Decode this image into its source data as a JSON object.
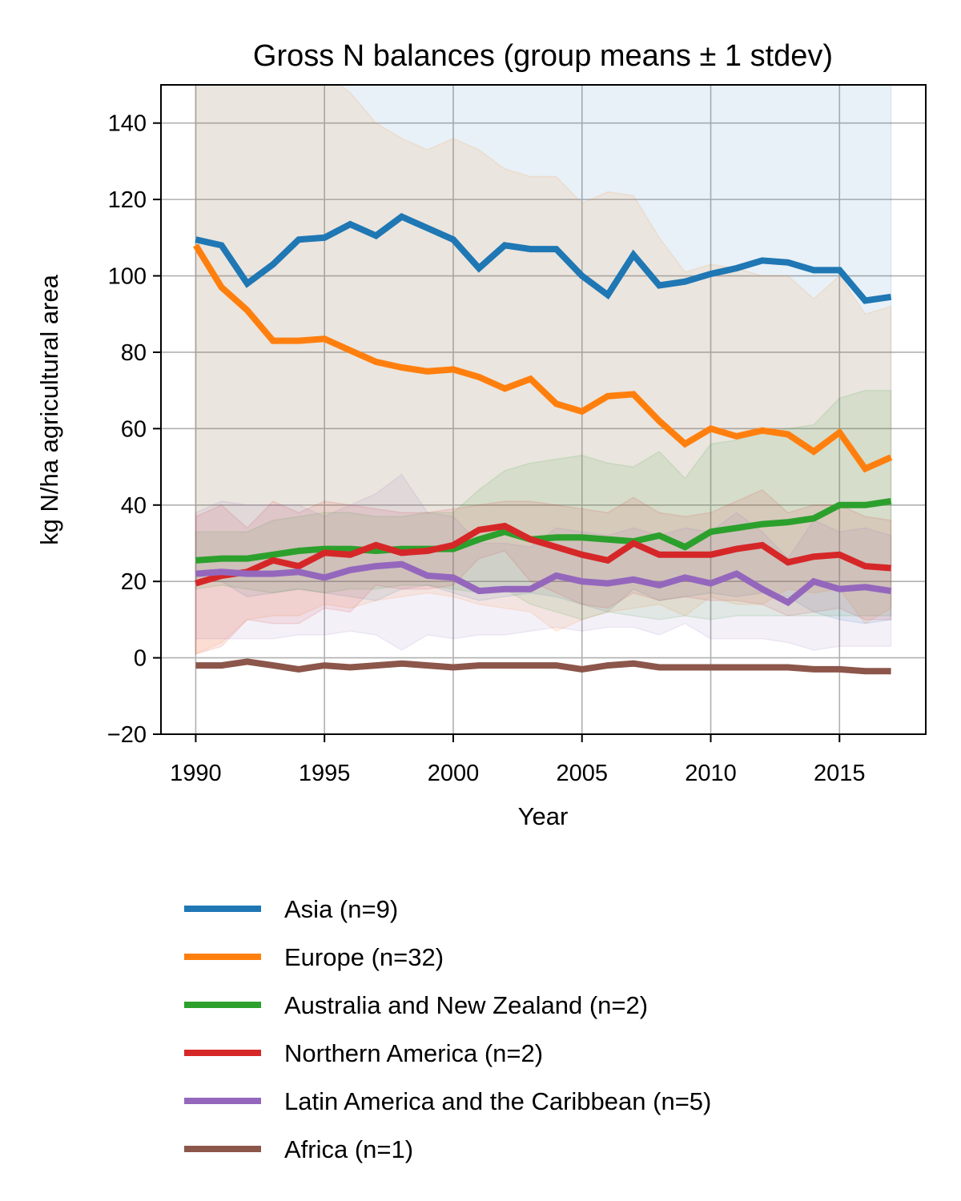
{
  "chart_data": {
    "type": "line",
    "title": "Gross N balances (group means ± 1 stdev)",
    "xlabel": "Year",
    "ylabel": "kg N/ha agricultural area",
    "xlim": [
      1988.65,
      2018.35
    ],
    "ylim": [
      -20,
      150
    ],
    "xticks": [
      1990,
      1995,
      2000,
      2005,
      2010,
      2015
    ],
    "yticks": [
      -20,
      0,
      20,
      40,
      60,
      80,
      100,
      120,
      140
    ],
    "ytick_labels": [
      "−20",
      "0",
      "20",
      "40",
      "60",
      "80",
      "100",
      "120",
      "140"
    ],
    "grid": true,
    "legend_position": "below plot",
    "x": [
      1990,
      1991,
      1992,
      1993,
      1994,
      1995,
      1996,
      1997,
      1998,
      1999,
      2000,
      2001,
      2002,
      2003,
      2004,
      2005,
      2006,
      2007,
      2008,
      2009,
      2010,
      2011,
      2012,
      2013,
      2014,
      2015,
      2016,
      2017
    ],
    "series": [
      {
        "name": "Asia (n=9)",
        "color": "#1f77b4",
        "values": [
          109.5,
          108,
          98,
          103,
          109.5,
          110,
          113.5,
          110.5,
          115.5,
          112.5,
          109.5,
          102,
          108,
          107,
          107,
          100,
          95,
          105.5,
          97.5,
          98.5,
          100.5,
          102,
          104,
          103.5,
          101.5,
          101.5,
          93.5,
          94.5
        ],
        "lower": [
          20,
          20,
          16,
          17,
          18,
          17,
          16,
          15,
          18,
          19,
          17,
          15,
          16,
          17,
          16,
          14,
          12,
          18,
          15,
          16,
          17,
          16,
          17,
          16,
          12,
          10,
          9,
          10
        ],
        "upper": [
          200,
          195,
          185,
          190,
          200,
          200,
          205,
          205,
          210,
          200,
          200,
          190,
          195,
          195,
          195,
          185,
          180,
          195,
          180,
          185,
          185,
          190,
          190,
          190,
          185,
          185,
          180,
          180
        ]
      },
      {
        "name": "Europe (n=32)",
        "color": "#ff7f0e",
        "values": [
          108,
          97,
          91,
          83,
          83,
          83.5,
          80.5,
          77.5,
          76,
          75,
          75.5,
          73.5,
          70.5,
          73,
          66.5,
          64.5,
          68.5,
          69,
          62,
          56,
          60,
          58,
          59.5,
          58.5,
          54,
          59,
          49.5,
          52.5
        ],
        "lower": [
          1,
          4,
          10,
          11,
          11,
          14,
          13,
          15,
          16,
          17,
          16,
          14,
          13,
          12,
          7,
          10,
          12,
          13,
          14,
          11,
          16,
          14,
          14,
          18,
          17,
          18,
          9,
          13
        ],
        "upper": [
          215,
          190,
          172,
          155,
          155,
          153,
          148,
          140,
          136,
          133,
          136,
          133,
          128,
          126,
          126,
          119,
          122,
          121,
          110,
          101,
          103,
          102,
          100,
          100,
          94,
          100,
          90,
          92
        ]
      },
      {
        "name": "Australia and New Zealand (n=2)",
        "color": "#2ca02c",
        "values": [
          25.5,
          26,
          26,
          27,
          28,
          28.5,
          28.5,
          28,
          28.5,
          28.5,
          28.5,
          31,
          33,
          31,
          31.5,
          31.5,
          31,
          30.5,
          32,
          29,
          33,
          34,
          35,
          35.5,
          36.5,
          40,
          40,
          41
        ],
        "lower": [
          18,
          19,
          18,
          17,
          18,
          17,
          18,
          18,
          19,
          19,
          18,
          17,
          18,
          14,
          12,
          10,
          12,
          11,
          10,
          11,
          10,
          11,
          11,
          11,
          11,
          11,
          11,
          11
        ],
        "upper": [
          33,
          33,
          33,
          36,
          37,
          38,
          38,
          37,
          37,
          38,
          38,
          44,
          49,
          51,
          52,
          53,
          51,
          50,
          54,
          47,
          56,
          57,
          59,
          60,
          61,
          68,
          70,
          70
        ]
      },
      {
        "name": "Northern America (n=2)",
        "color": "#d62728",
        "values": [
          19.5,
          21.5,
          22.5,
          25.5,
          24,
          27.5,
          27,
          29.5,
          27.5,
          28,
          29.5,
          33.5,
          34.5,
          31,
          29,
          27,
          25.5,
          30,
          27,
          27,
          27,
          28.5,
          29.5,
          25,
          26.5,
          27,
          24,
          23.5
        ],
        "lower": [
          1,
          3,
          10,
          9,
          9,
          13,
          12,
          19,
          18,
          18,
          19,
          26,
          28,
          20,
          17,
          14,
          13,
          17,
          15,
          16,
          15,
          15,
          14,
          11,
          12,
          13,
          10,
          10
        ],
        "upper": [
          37,
          40,
          34,
          41,
          38,
          41,
          40,
          39,
          38,
          38,
          39,
          40,
          41,
          41,
          40,
          39,
          38,
          42,
          38,
          37,
          38,
          41,
          44,
          38,
          40,
          40,
          37,
          36
        ]
      },
      {
        "name": "Latin America and the Caribbean (n=5)",
        "color": "#9467bd",
        "values": [
          22,
          22.5,
          22,
          22,
          22.5,
          21,
          23,
          24,
          24.5,
          21.5,
          21,
          17.5,
          18,
          18,
          21.5,
          20,
          19.5,
          20.5,
          19,
          21,
          19.5,
          22,
          18,
          14.5,
          20,
          18,
          18.5,
          17.5
        ],
        "lower": [
          5,
          5,
          5,
          5,
          6,
          6,
          7,
          6,
          2,
          6,
          5,
          6,
          6,
          7,
          8,
          7,
          8,
          8,
          6,
          9,
          5,
          5,
          5,
          4,
          2,
          3,
          3,
          3
        ],
        "upper": [
          38,
          41,
          40,
          40,
          40,
          37,
          40,
          43,
          48,
          38,
          37,
          30,
          30,
          29,
          34,
          33,
          32,
          34,
          32,
          34,
          33,
          38,
          33,
          26,
          36,
          33,
          34,
          32
        ]
      },
      {
        "name": "Africa (n=1)",
        "color": "#8c564b",
        "values": [
          -2,
          -2,
          -1,
          -2,
          -3,
          -2,
          -2.5,
          -2,
          -1.5,
          -2,
          -2.5,
          -2,
          -2,
          -2,
          -2,
          -3,
          -2,
          -1.5,
          -2.5,
          -2.5,
          -2.5,
          -2.5,
          -2.5,
          -2.5,
          -3,
          -3,
          -3.5,
          -3.5
        ]
      }
    ]
  }
}
